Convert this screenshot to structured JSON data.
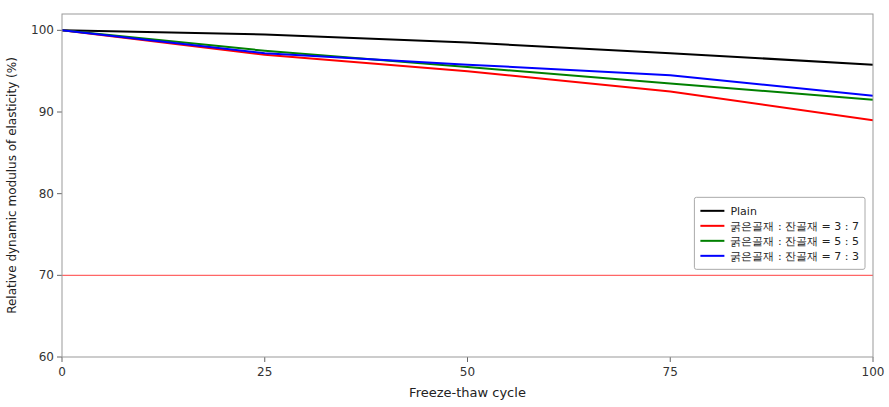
{
  "chart_data": {
    "type": "line",
    "xlabel": "Freeze-thaw cycle",
    "ylabel": "Relative dynamic modulus of elasticity (%)",
    "x": [
      0,
      25,
      50,
      75,
      100
    ],
    "series": [
      {
        "name": "Plain",
        "color": "#000000",
        "values": [
          100.0,
          99.5,
          98.5,
          97.2,
          95.8
        ]
      },
      {
        "name": "굵은골재 : 잔골재 = 3 : 7",
        "color": "#ff0000",
        "values": [
          100.0,
          97.0,
          95.0,
          92.5,
          89.0
        ]
      },
      {
        "name": "굵은골재 : 잔골재 = 5 : 5",
        "color": "#008000",
        "values": [
          100.0,
          97.5,
          95.5,
          93.5,
          91.5
        ]
      },
      {
        "name": "굵은골재 : 잔골재 = 7 : 3",
        "color": "#0000ff",
        "values": [
          100.0,
          97.2,
          95.8,
          94.5,
          92.0
        ]
      }
    ],
    "reference_lines": [
      {
        "value": 70,
        "color": "#ff6666"
      }
    ],
    "xlim": [
      0,
      100
    ],
    "ylim": [
      60,
      102
    ],
    "xticks": [
      0,
      25,
      50,
      75,
      100
    ],
    "yticks": [
      60,
      70,
      80,
      90,
      100
    ],
    "grid": false,
    "legend": "lower right"
  }
}
